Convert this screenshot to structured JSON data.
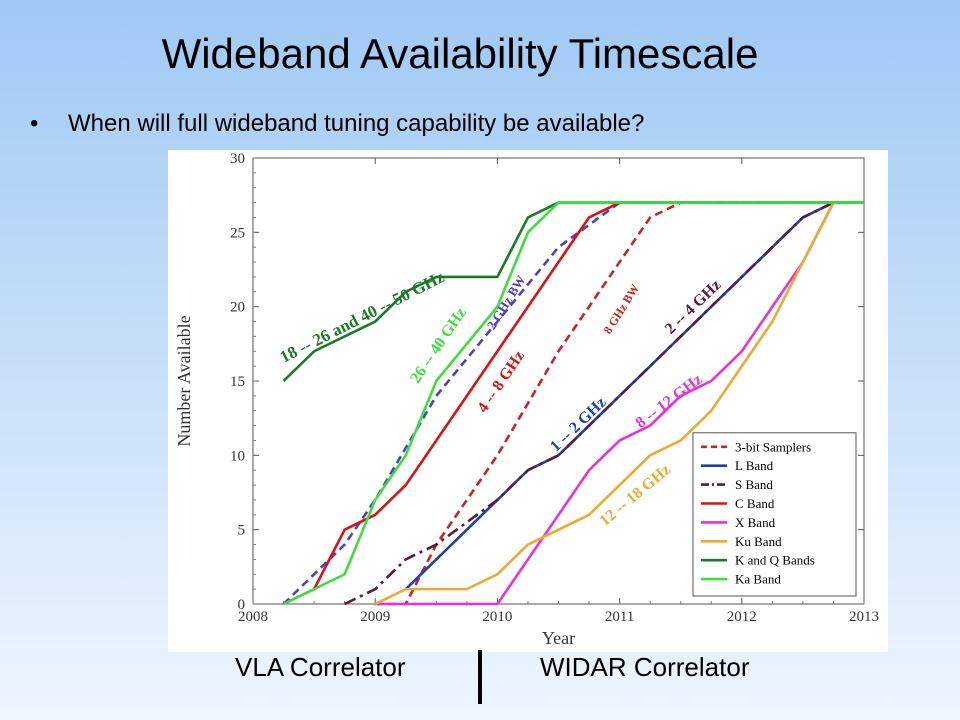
{
  "slide": {
    "title": "Wideband Availability Timescale",
    "bullet": "When will full wideband tuning capability be available?",
    "captions": {
      "left": "VLA Correlator",
      "right": "WIDAR Correlator"
    }
  },
  "chart_data": {
    "type": "line",
    "xlabel": "Year",
    "ylabel": "Number Available",
    "xlim": [
      2008,
      2013
    ],
    "ylim": [
      0,
      30
    ],
    "xticks": [
      2008,
      2009,
      2010,
      2011,
      2012,
      2013
    ],
    "yticks": [
      0,
      5,
      10,
      15,
      20,
      25,
      30
    ],
    "grid": false,
    "legend_position": "bottom-right",
    "series": [
      {
        "name": "3-bit Samplers",
        "color": "#cc2222",
        "style": "dashed",
        "points": [
          [
            2009.0,
            0
          ],
          [
            2009.25,
            0
          ],
          [
            2009.5,
            4
          ],
          [
            2010.0,
            10
          ],
          [
            2010.5,
            17
          ],
          [
            2011.0,
            23
          ],
          [
            2011.25,
            26
          ],
          [
            2011.5,
            27
          ],
          [
            2013.0,
            27
          ]
        ]
      },
      {
        "name": "L Band",
        "color": "#1a3fb5",
        "style": "solid",
        "points": [
          [
            2009.25,
            1
          ],
          [
            2010.0,
            7
          ],
          [
            2010.25,
            9
          ],
          [
            2010.5,
            10
          ],
          [
            2011.0,
            14
          ],
          [
            2011.5,
            18
          ],
          [
            2012.0,
            22
          ],
          [
            2012.25,
            24
          ],
          [
            2012.5,
            26
          ],
          [
            2012.75,
            27
          ],
          [
            2013.0,
            27
          ]
        ]
      },
      {
        "name": "S Band",
        "color": "#5a1a3a",
        "style": "dashdot",
        "points": [
          [
            2008.75,
            0
          ],
          [
            2009.0,
            1
          ],
          [
            2009.25,
            3
          ],
          [
            2009.5,
            4
          ],
          [
            2010.0,
            7
          ],
          [
            2010.25,
            9
          ],
          [
            2010.5,
            10
          ],
          [
            2011.0,
            14
          ],
          [
            2011.5,
            18
          ],
          [
            2012.0,
            22
          ],
          [
            2012.25,
            24
          ],
          [
            2012.5,
            26
          ],
          [
            2012.75,
            27
          ],
          [
            2013.0,
            27
          ]
        ]
      },
      {
        "name": "C Band",
        "color": "#dd1111",
        "style": "solid",
        "points": [
          [
            2008.25,
            0
          ],
          [
            2008.5,
            1
          ],
          [
            2008.75,
            5
          ],
          [
            2009.0,
            6
          ],
          [
            2009.25,
            8
          ],
          [
            2009.5,
            11
          ],
          [
            2010.0,
            17
          ],
          [
            2010.5,
            23
          ],
          [
            2010.75,
            26
          ],
          [
            2011.0,
            27
          ],
          [
            2013.0,
            27
          ]
        ]
      },
      {
        "name": "X Band",
        "color": "#e830e0",
        "style": "solid",
        "points": [
          [
            2009.0,
            0
          ],
          [
            2010.0,
            0
          ],
          [
            2010.25,
            3
          ],
          [
            2010.5,
            6
          ],
          [
            2010.75,
            9
          ],
          [
            2011.0,
            11
          ],
          [
            2011.25,
            12
          ],
          [
            2011.5,
            14
          ],
          [
            2011.75,
            15
          ],
          [
            2012.0,
            17
          ],
          [
            2012.25,
            20
          ],
          [
            2012.5,
            23
          ],
          [
            2012.75,
            27
          ],
          [
            2013.0,
            27
          ]
        ]
      },
      {
        "name": "Ku Band",
        "color": "#f0a830",
        "style": "solid",
        "points": [
          [
            2009.0,
            0
          ],
          [
            2009.25,
            1
          ],
          [
            2009.75,
            1
          ],
          [
            2010.0,
            2
          ],
          [
            2010.25,
            4
          ],
          [
            2010.5,
            5
          ],
          [
            2010.75,
            6
          ],
          [
            2011.0,
            8
          ],
          [
            2011.25,
            10
          ],
          [
            2011.5,
            11
          ],
          [
            2011.75,
            13
          ],
          [
            2012.0,
            16
          ],
          [
            2012.25,
            19
          ],
          [
            2012.5,
            23
          ],
          [
            2012.75,
            27
          ],
          [
            2013.0,
            27
          ]
        ]
      },
      {
        "name": "K and Q Bands",
        "color": "#1a7a2a",
        "style": "solid",
        "points": [
          [
            2008.25,
            15
          ],
          [
            2008.5,
            17
          ],
          [
            2008.75,
            18
          ],
          [
            2009.0,
            19
          ],
          [
            2009.25,
            21
          ],
          [
            2009.5,
            22
          ],
          [
            2010.0,
            22
          ],
          [
            2010.25,
            26
          ],
          [
            2010.5,
            27
          ],
          [
            2013.0,
            27
          ]
        ]
      },
      {
        "name": "Ka Band",
        "color": "#3ce03c",
        "style": "solid",
        "points": [
          [
            2008.25,
            0
          ],
          [
            2008.5,
            1
          ],
          [
            2008.75,
            2
          ],
          [
            2009.0,
            7
          ],
          [
            2009.25,
            10
          ],
          [
            2009.5,
            15
          ],
          [
            2010.0,
            20
          ],
          [
            2010.25,
            25
          ],
          [
            2010.5,
            27
          ],
          [
            2013.0,
            27
          ]
        ]
      }
    ],
    "extra_lines": [
      {
        "label": "2 GHz BW",
        "color": "#5040c0",
        "style": "dashed",
        "points": [
          [
            2008.25,
            0
          ],
          [
            2008.75,
            4
          ],
          [
            2009.0,
            7
          ],
          [
            2009.5,
            14
          ],
          [
            2010.0,
            19
          ],
          [
            2010.5,
            24
          ],
          [
            2011.0,
            27
          ],
          [
            2013.0,
            27
          ]
        ]
      }
    ],
    "annotations": [
      {
        "text": "18 -- 26 and 40 -- 50 GHz",
        "color": "#1a7a2a",
        "x": 2008.25,
        "y": 16.2,
        "angle": -27,
        "size": 17
      },
      {
        "text": "26 -- 40 GHz",
        "color": "#3ce03c",
        "x": 2009.35,
        "y": 14.8,
        "angle": -56,
        "size": 16
      },
      {
        "text": "2 GHz BW",
        "color": "#5040c0",
        "x": 2009.97,
        "y": 18.4,
        "angle": -58,
        "size": 13
      },
      {
        "text": "4 -- 8 GHz",
        "color": "#dd1111",
        "x": 2009.9,
        "y": 12.8,
        "angle": -56,
        "size": 16
      },
      {
        "text": "8 GHz BW",
        "color": "#cc2222",
        "x": 2010.92,
        "y": 18.1,
        "angle": -58,
        "size": 12
      },
      {
        "text": "2 -- 4 GHz",
        "color": "#5a1a3a",
        "x": 2011.42,
        "y": 18.1,
        "angle": -44,
        "size": 16
      },
      {
        "text": "1 -- 2 GHz",
        "color": "#1a3fb5",
        "x": 2010.48,
        "y": 10.2,
        "angle": -44,
        "size": 16
      },
      {
        "text": "8 -- 12 GHz",
        "color": "#e830e0",
        "x": 2011.17,
        "y": 11.8,
        "angle": -37,
        "size": 16
      },
      {
        "text": "12 -- 18 GHz",
        "color": "#f0a830",
        "x": 2010.88,
        "y": 5.2,
        "angle": -40,
        "size": 16
      }
    ]
  }
}
